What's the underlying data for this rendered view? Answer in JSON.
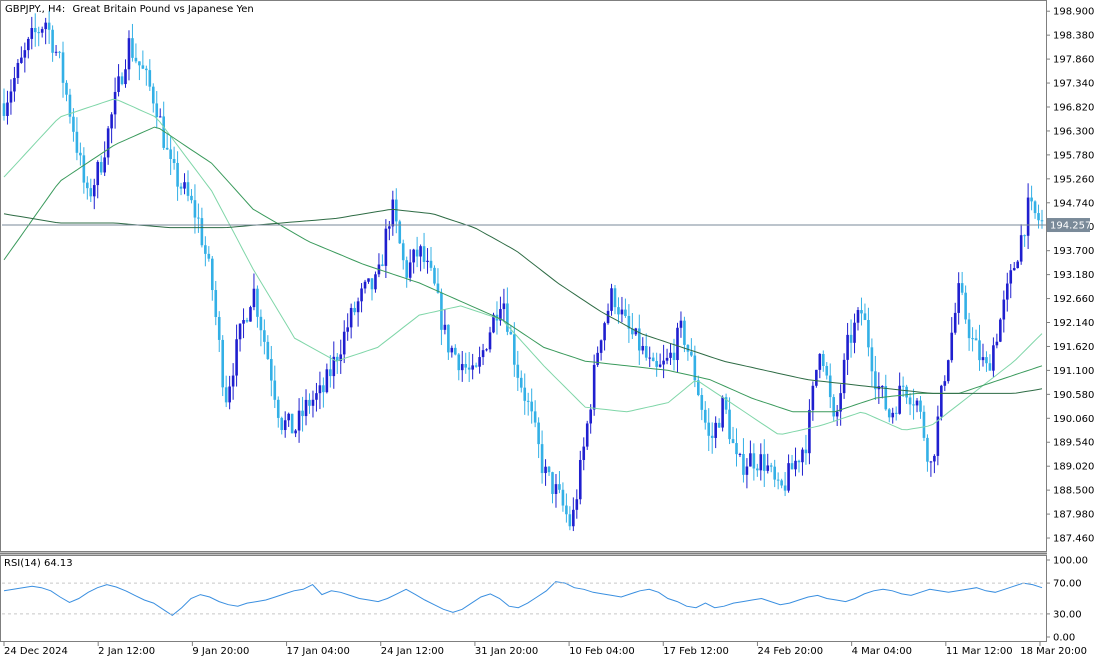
{
  "header": {
    "symbol": "GBPJPY., H4:",
    "description": "Great Britain Pound vs Japanese Yen"
  },
  "rsi_panel": {
    "label": "RSI(14) 64.13"
  },
  "colors": {
    "bull": "#1f1fcf",
    "bear": "#33b0e6",
    "ma_fast": "#7fd6a8",
    "ma_mid": "#3a9a5c",
    "ma_slow": "#2d6b44",
    "rsi": "#3a8fe0",
    "price_line": "#7a8a99",
    "price_tag": "#7a8a99"
  },
  "chart_data": [
    {
      "type": "candlestick",
      "title": "GBPJPY., H4: Great Britain Pound vs Japanese Yen",
      "y_ticks": [
        "198.900",
        "198.380",
        "197.860",
        "197.340",
        "196.820",
        "196.300",
        "195.780",
        "195.260",
        "194.740",
        "194.220",
        "193.700",
        "193.180",
        "192.660",
        "192.140",
        "191.620",
        "191.100",
        "190.580",
        "190.060",
        "189.540",
        "189.020",
        "188.500",
        "187.980",
        "187.460"
      ],
      "ylim": [
        187.2,
        199.1
      ],
      "current_price": 194.257,
      "current_price_label": "194.257",
      "x_tick_labels": [
        "24 Dec 2024",
        "2 Jan 12:00",
        "9 Jan 20:00",
        "17 Jan 04:00",
        "24 Jan 12:00",
        "31 Jan 20:00",
        "10 Feb 04:00",
        "17 Feb 12:00",
        "24 Feb 20:00",
        "4 Mar 04:00",
        "11 Mar 12:00",
        "18 Mar 20:00"
      ],
      "price_path": [
        [
          0,
          196.9
        ],
        [
          2,
          197.6
        ],
        [
          4,
          198.3
        ],
        [
          6,
          198.7
        ],
        [
          8,
          197.8
        ],
        [
          10,
          196.4
        ],
        [
          12,
          194.8
        ],
        [
          14,
          195.6
        ],
        [
          16,
          196.9
        ],
        [
          18,
          198.2
        ],
        [
          20,
          197.6
        ],
        [
          22,
          196.9
        ],
        [
          24,
          195.5
        ],
        [
          26,
          195.0
        ],
        [
          28,
          194.4
        ],
        [
          30,
          193.0
        ],
        [
          32,
          190.5
        ],
        [
          34,
          191.8
        ],
        [
          36,
          192.9
        ],
        [
          38,
          191.5
        ],
        [
          40,
          190.0
        ],
        [
          42,
          189.8
        ],
        [
          44,
          190.4
        ],
        [
          46,
          190.6
        ],
        [
          48,
          191.4
        ],
        [
          50,
          192.2
        ],
        [
          52,
          192.8
        ],
        [
          54,
          193.0
        ],
        [
          56,
          194.7
        ],
        [
          58,
          193.2
        ],
        [
          60,
          193.7
        ],
        [
          62,
          193.0
        ],
        [
          64,
          191.7
        ],
        [
          66,
          191.3
        ],
        [
          68,
          190.9
        ],
        [
          70,
          191.9
        ],
        [
          72,
          192.8
        ],
        [
          74,
          191.2
        ],
        [
          76,
          190.2
        ],
        [
          78,
          188.9
        ],
        [
          80,
          188.4
        ],
        [
          82,
          187.7
        ],
        [
          84,
          189.6
        ],
        [
          86,
          191.8
        ],
        [
          88,
          192.8
        ],
        [
          90,
          192.0
        ],
        [
          92,
          191.6
        ],
        [
          94,
          191.0
        ],
        [
          96,
          191.3
        ],
        [
          98,
          192.0
        ],
        [
          100,
          190.9
        ],
        [
          102,
          189.5
        ],
        [
          104,
          190.4
        ],
        [
          106,
          189.0
        ],
        [
          108,
          189.2
        ],
        [
          110,
          189.1
        ],
        [
          112,
          188.4
        ],
        [
          114,
          189.0
        ],
        [
          116,
          189.6
        ],
        [
          118,
          191.8
        ],
        [
          120,
          189.8
        ],
        [
          122,
          191.7
        ],
        [
          124,
          192.4
        ],
        [
          126,
          190.9
        ],
        [
          128,
          190.1
        ],
        [
          130,
          190.8
        ],
        [
          132,
          190.4
        ],
        [
          134,
          189.0
        ],
        [
          136,
          191.1
        ],
        [
          138,
          192.8
        ],
        [
          140,
          191.7
        ],
        [
          142,
          191.1
        ],
        [
          144,
          192.2
        ],
        [
          146,
          193.4
        ],
        [
          148,
          194.6
        ],
        [
          150,
          194.3
        ]
      ],
      "ma_fast_path": [
        [
          0,
          195.3
        ],
        [
          8,
          196.6
        ],
        [
          16,
          197.0
        ],
        [
          22,
          196.6
        ],
        [
          30,
          195.0
        ],
        [
          36,
          193.3
        ],
        [
          42,
          191.8
        ],
        [
          48,
          191.3
        ],
        [
          54,
          191.6
        ],
        [
          60,
          192.3
        ],
        [
          66,
          192.5
        ],
        [
          72,
          192.2
        ],
        [
          78,
          191.2
        ],
        [
          84,
          190.3
        ],
        [
          90,
          190.2
        ],
        [
          96,
          190.4
        ],
        [
          100,
          190.9
        ],
        [
          106,
          190.3
        ],
        [
          112,
          189.7
        ],
        [
          118,
          189.9
        ],
        [
          124,
          190.2
        ],
        [
          130,
          189.8
        ],
        [
          134,
          189.9
        ],
        [
          140,
          190.6
        ],
        [
          146,
          191.3
        ],
        [
          150,
          191.9
        ]
      ],
      "ma_mid_path": [
        [
          0,
          193.5
        ],
        [
          8,
          195.2
        ],
        [
          16,
          196.0
        ],
        [
          22,
          196.4
        ],
        [
          30,
          195.6
        ],
        [
          36,
          194.6
        ],
        [
          44,
          193.9
        ],
        [
          52,
          193.4
        ],
        [
          60,
          193.0
        ],
        [
          66,
          192.6
        ],
        [
          72,
          192.2
        ],
        [
          78,
          191.6
        ],
        [
          84,
          191.3
        ],
        [
          90,
          191.2
        ],
        [
          96,
          191.1
        ],
        [
          102,
          190.9
        ],
        [
          108,
          190.5
        ],
        [
          114,
          190.2
        ],
        [
          120,
          190.2
        ],
        [
          126,
          190.5
        ],
        [
          132,
          190.6
        ],
        [
          138,
          190.6
        ],
        [
          144,
          190.9
        ],
        [
          150,
          191.2
        ]
      ],
      "ma_slow_path": [
        [
          0,
          194.5
        ],
        [
          8,
          194.3
        ],
        [
          16,
          194.3
        ],
        [
          24,
          194.2
        ],
        [
          32,
          194.2
        ],
        [
          40,
          194.3
        ],
        [
          48,
          194.4
        ],
        [
          56,
          194.6
        ],
        [
          62,
          194.5
        ],
        [
          68,
          194.2
        ],
        [
          74,
          193.7
        ],
        [
          80,
          193.0
        ],
        [
          86,
          192.4
        ],
        [
          92,
          191.9
        ],
        [
          98,
          191.6
        ],
        [
          104,
          191.3
        ],
        [
          110,
          191.1
        ],
        [
          116,
          190.9
        ],
        [
          122,
          190.8
        ],
        [
          128,
          190.7
        ],
        [
          134,
          190.6
        ],
        [
          140,
          190.6
        ],
        [
          146,
          190.6
        ],
        [
          150,
          190.7
        ]
      ]
    },
    {
      "type": "line",
      "name": "RSI(14) 64.13",
      "y_ticks": [
        "100.00",
        "70.00",
        "30.00",
        "0.00"
      ],
      "ylim": [
        0,
        100
      ],
      "levels": [
        70,
        30
      ],
      "values": [
        60,
        62,
        64,
        66,
        64,
        60,
        52,
        45,
        50,
        58,
        64,
        68,
        65,
        60,
        54,
        48,
        44,
        36,
        28,
        38,
        50,
        55,
        52,
        46,
        42,
        40,
        44,
        46,
        48,
        52,
        56,
        60,
        62,
        68,
        55,
        60,
        58,
        54,
        50,
        48,
        46,
        50,
        56,
        62,
        55,
        48,
        42,
        36,
        32,
        36,
        44,
        52,
        56,
        50,
        40,
        38,
        44,
        52,
        60,
        72,
        70,
        64,
        62,
        58,
        56,
        54,
        52,
        56,
        60,
        62,
        58,
        50,
        46,
        40,
        38,
        44,
        38,
        40,
        44,
        46,
        48,
        50,
        46,
        42,
        44,
        48,
        52,
        54,
        50,
        48,
        46,
        50,
        56,
        60,
        62,
        60,
        56,
        54,
        58,
        62,
        60,
        58,
        60,
        62,
        64,
        60,
        58,
        62,
        66,
        70,
        68,
        64
      ]
    }
  ]
}
